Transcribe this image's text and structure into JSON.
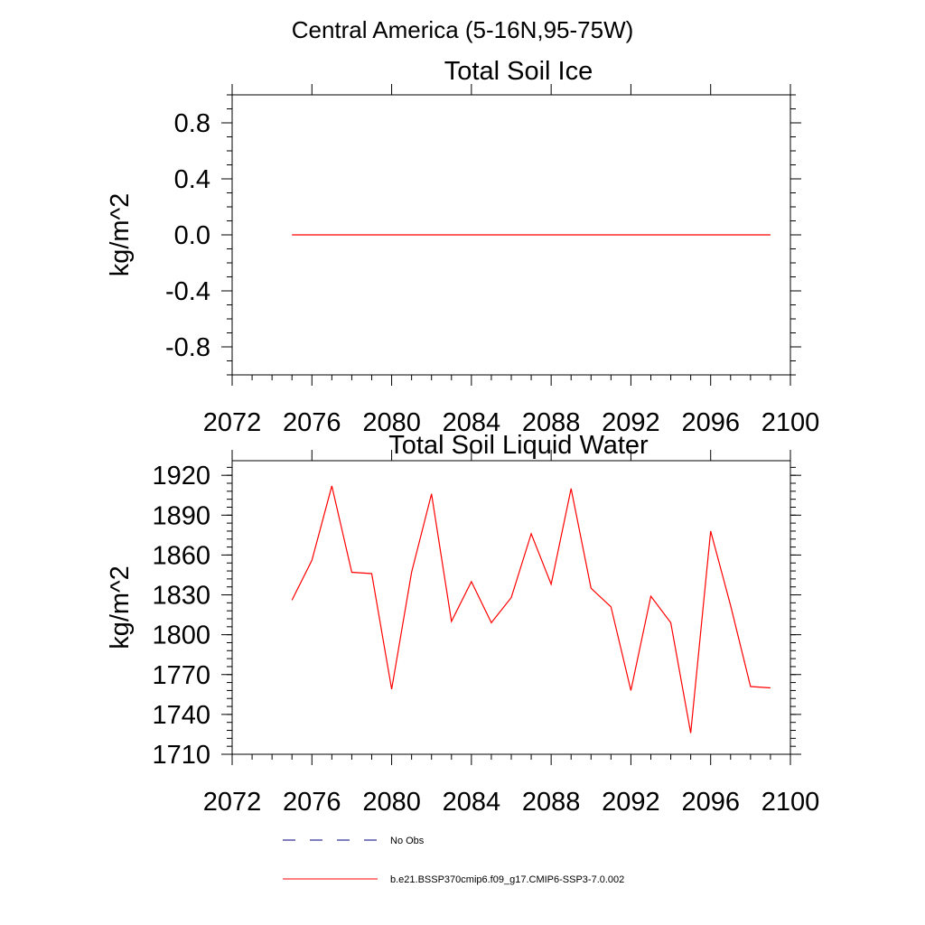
{
  "page_title": "Central America (5-16N,95-75W)",
  "colors": {
    "series": "#ff0000",
    "obs": "#000080",
    "axis": "#000000"
  },
  "chart_data": [
    {
      "type": "line",
      "title": "Total Soil Ice",
      "ylabel": "kg/m^2",
      "xlabel": "",
      "xlim": [
        2072,
        2100
      ],
      "ylim": [
        -1.0,
        1.0
      ],
      "x_ticks": [
        2072,
        2076,
        2080,
        2084,
        2088,
        2092,
        2096,
        2100
      ],
      "x_tick_labels": [
        "2072",
        "2076",
        "2080",
        "2084",
        "2088",
        "2092",
        "2096",
        "2100"
      ],
      "y_ticks": [
        -0.8,
        -0.4,
        0.0,
        0.4,
        0.8
      ],
      "y_tick_labels": [
        "-0.8",
        "-0.4",
        "0.0",
        "0.4",
        "0.8"
      ],
      "grid": false,
      "series": [
        {
          "name": "b.e21.BSSP370cmip6.f09_g17.CMIP6-SSP3-7.0.002",
          "color": "#ff0000",
          "x": [
            2075,
            2076,
            2077,
            2078,
            2079,
            2080,
            2081,
            2082,
            2083,
            2084,
            2085,
            2086,
            2087,
            2088,
            2089,
            2090,
            2091,
            2092,
            2093,
            2094,
            2095,
            2096,
            2097,
            2098,
            2099
          ],
          "values": [
            0,
            0,
            0,
            0,
            0,
            0,
            0,
            0,
            0,
            0,
            0,
            0,
            0,
            0,
            0,
            0,
            0,
            0,
            0,
            0,
            0,
            0,
            0,
            0,
            0
          ]
        }
      ]
    },
    {
      "type": "line",
      "title": "Total Soil Liquid Water",
      "ylabel": "kg/m^2",
      "xlabel": "",
      "xlim": [
        2072,
        2100
      ],
      "ylim": [
        1710,
        1931
      ],
      "x_ticks": [
        2072,
        2076,
        2080,
        2084,
        2088,
        2092,
        2096,
        2100
      ],
      "x_tick_labels": [
        "2072",
        "2076",
        "2080",
        "2084",
        "2088",
        "2092",
        "2096",
        "2100"
      ],
      "y_ticks": [
        1710,
        1740,
        1770,
        1800,
        1830,
        1860,
        1890,
        1920
      ],
      "y_tick_labels": [
        "1710",
        "1740",
        "1770",
        "1800",
        "1830",
        "1860",
        "1890",
        "1920"
      ],
      "grid": false,
      "series": [
        {
          "name": "b.e21.BSSP370cmip6.f09_g17.CMIP6-SSP3-7.0.002",
          "color": "#ff0000",
          "x": [
            2075,
            2076,
            2077,
            2078,
            2079,
            2080,
            2081,
            2082,
            2083,
            2084,
            2085,
            2086,
            2087,
            2088,
            2089,
            2090,
            2091,
            2092,
            2093,
            2094,
            2095,
            2096,
            2097,
            2098,
            2099
          ],
          "values": [
            1826,
            1856,
            1912,
            1847,
            1846,
            1759,
            1847,
            1906,
            1810,
            1840,
            1809,
            1828,
            1876,
            1838,
            1910,
            1835,
            1821,
            1758,
            1829,
            1809,
            1726,
            1878,
            1822,
            1761,
            1760
          ]
        }
      ]
    }
  ],
  "legend": {
    "placement": "bottom",
    "items": [
      {
        "label": "No Obs",
        "style": "dashed",
        "color": "#000080"
      },
      {
        "label": "b.e21.BSSP370cmip6.f09_g17.CMIP6-SSP3-7.0.002",
        "style": "solid",
        "color": "#ff0000"
      }
    ]
  }
}
